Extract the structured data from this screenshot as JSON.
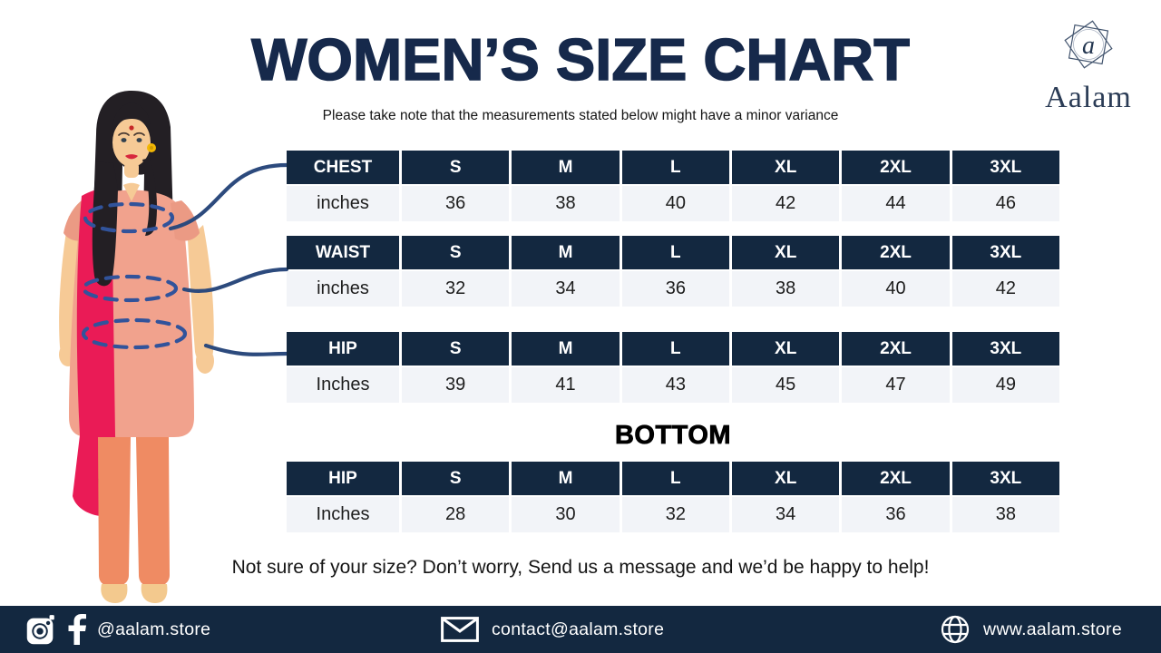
{
  "page": {
    "title": "WOMEN’S SIZE CHART",
    "subtitle": "Please take note that the measurements stated below might have a minor variance",
    "bottom_section_label": "BOTTOM",
    "note": "Not sure of your size? Don’t worry, Send us a message and we’d be happy to help!"
  },
  "brand": {
    "name": "Aalam",
    "monogram": "a"
  },
  "tables": [
    {
      "label": "CHEST",
      "unit": "inches",
      "sizes": [
        "S",
        "M",
        "L",
        "XL",
        "2XL",
        "3XL"
      ],
      "values": [
        "36",
        "38",
        "40",
        "42",
        "44",
        "46"
      ]
    },
    {
      "label": "WAIST",
      "unit": "inches",
      "sizes": [
        "S",
        "M",
        "L",
        "XL",
        "2XL",
        "3XL"
      ],
      "values": [
        "32",
        "34",
        "36",
        "38",
        "40",
        "42"
      ]
    },
    {
      "label": "HIP",
      "unit": "Inches",
      "sizes": [
        "S",
        "M",
        "L",
        "XL",
        "2XL",
        "3XL"
      ],
      "values": [
        "39",
        "41",
        "43",
        "45",
        "47",
        "49"
      ]
    },
    {
      "label": "HIP",
      "unit": "Inches",
      "sizes": [
        "S",
        "M",
        "L",
        "XL",
        "2XL",
        "3XL"
      ],
      "values": [
        "28",
        "30",
        "32",
        "34",
        "36",
        "38"
      ],
      "section": "BOTTOM"
    }
  ],
  "footer": {
    "social_handle": "@aalam.store",
    "email": "contact@aalam.store",
    "website": "www.aalam.store"
  },
  "colors": {
    "navy": "#132840",
    "title_navy": "#16294b",
    "row_bg": "#f2f4f8",
    "dash_blue": "#31539b",
    "curve_blue": "#2c4a7d",
    "dupatta_pink": "#ea1b56",
    "kurta_salmon": "#f1a28d",
    "pants_orange": "#ef8b63",
    "skin": "#f6ca96"
  }
}
